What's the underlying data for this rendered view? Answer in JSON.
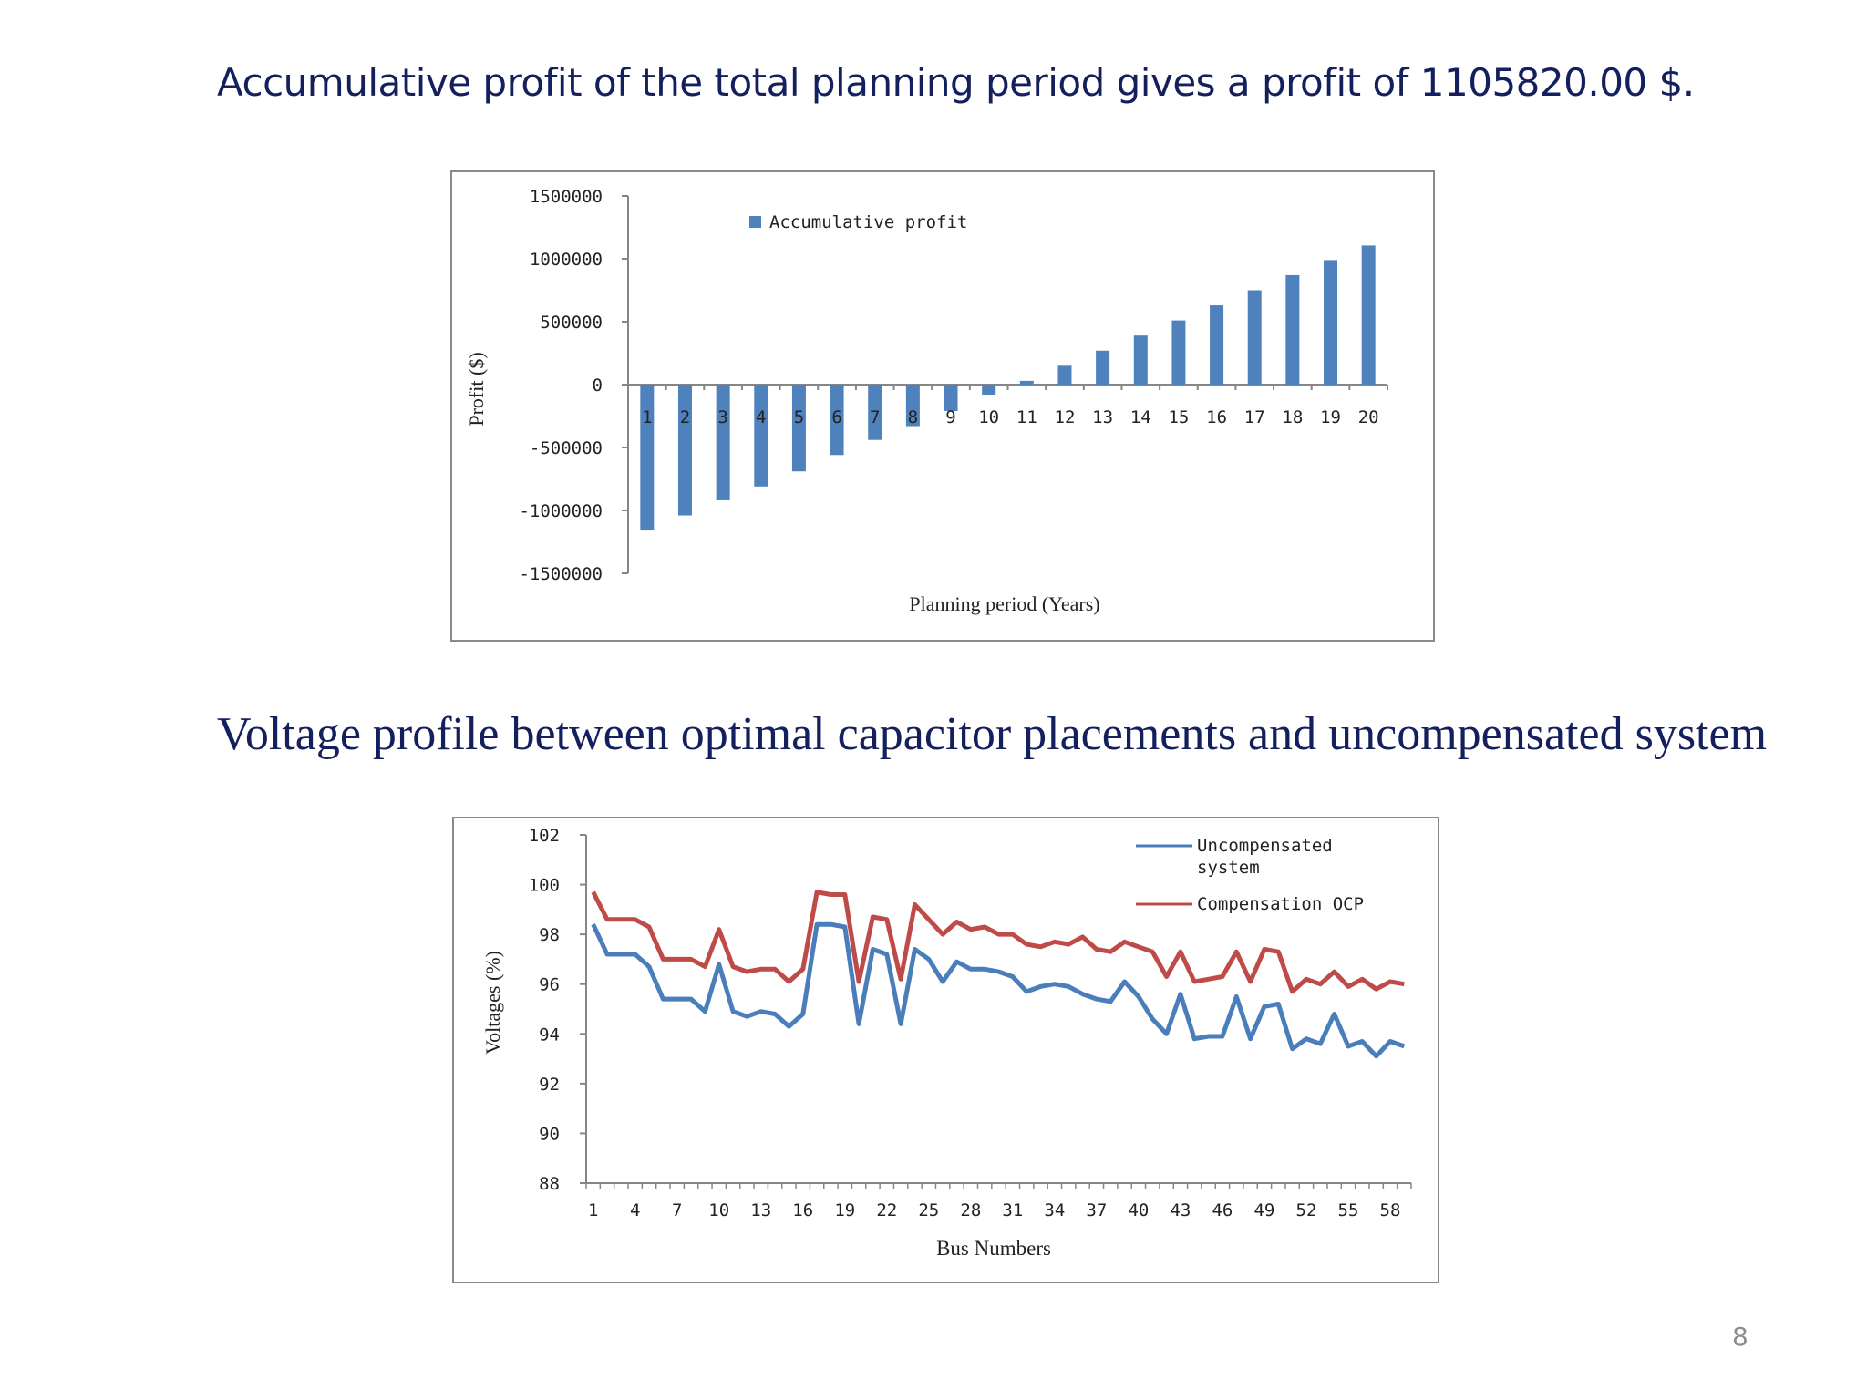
{
  "slide": {
    "heading1": "Accumulative profit of the total planning period gives a profit of 1105820.00 $.",
    "heading2": "Voltage profile between optimal capacitor  placements and uncompensated system",
    "page_number": "8"
  },
  "colors": {
    "bar": "#4f81bd",
    "uncompensated": "#4a7ebb",
    "compensated": "#be4b48",
    "heading": "#14205e"
  },
  "chart_data": [
    {
      "type": "bar",
      "legend": "Accumulative profit",
      "xlabel": "Planning period (Years)",
      "ylabel": "Profit ($)",
      "ylim": [
        -1500000,
        1500000
      ],
      "yticks": [
        "1500000",
        "1000000",
        "500000",
        "0",
        "-500000",
        "-1000000",
        "-1500000"
      ],
      "categories": [
        "1",
        "2",
        "3",
        "4",
        "5",
        "6",
        "7",
        "8",
        "9",
        "10",
        "11",
        "12",
        "13",
        "14",
        "15",
        "16",
        "17",
        "18",
        "19",
        "20"
      ],
      "values": [
        -1160000,
        -1040000,
        -920000,
        -810000,
        -690000,
        -560000,
        -440000,
        -330000,
        -210000,
        -80000,
        30000,
        150000,
        270000,
        390000,
        510000,
        630000,
        750000,
        870000,
        990000,
        1105820
      ]
    },
    {
      "type": "line",
      "xlabel": "Bus Numbers",
      "ylabel": "Voltages (%)",
      "ylim": [
        88,
        102
      ],
      "yticks": [
        "102",
        "100",
        "98",
        "96",
        "94",
        "92",
        "90",
        "88"
      ],
      "xtick_labels": [
        "1",
        "4",
        "7",
        "10",
        "13",
        "16",
        "19",
        "22",
        "25",
        "28",
        "31",
        "34",
        "37",
        "40",
        "43",
        "46",
        "49",
        "52",
        "55",
        "58"
      ],
      "series": [
        {
          "name": "Uncompensated system",
          "name_line1": "Uncompensated",
          "name_line2": "system",
          "values": [
            98.4,
            97.2,
            97.2,
            97.2,
            96.7,
            95.4,
            95.4,
            95.4,
            94.9,
            96.8,
            94.9,
            94.7,
            94.9,
            94.8,
            94.3,
            94.8,
            98.4,
            98.4,
            98.3,
            94.4,
            97.4,
            97.2,
            94.4,
            97.4,
            97.0,
            96.1,
            96.9,
            96.6,
            96.6,
            96.5,
            96.3,
            95.7,
            95.9,
            96.0,
            95.9,
            95.6,
            95.4,
            95.3,
            96.1,
            95.5,
            94.6,
            94.0,
            95.6,
            93.8,
            93.9,
            93.9,
            95.5,
            93.8,
            95.1,
            95.2,
            93.4,
            93.8,
            93.6,
            94.8,
            93.5,
            93.7,
            93.1,
            93.7,
            93.5
          ]
        },
        {
          "name": "Compensation OCP",
          "values": [
            99.7,
            98.6,
            98.6,
            98.6,
            98.3,
            97.0,
            97.0,
            97.0,
            96.7,
            98.2,
            96.7,
            96.5,
            96.6,
            96.6,
            96.1,
            96.6,
            99.7,
            99.6,
            99.6,
            96.1,
            98.7,
            98.6,
            96.2,
            99.2,
            98.6,
            98.0,
            98.5,
            98.2,
            98.3,
            98.0,
            98.0,
            97.6,
            97.5,
            97.7,
            97.6,
            97.9,
            97.4,
            97.3,
            97.7,
            97.5,
            97.3,
            96.3,
            97.3,
            96.1,
            96.2,
            96.3,
            97.3,
            96.1,
            97.4,
            97.3,
            95.7,
            96.2,
            96.0,
            96.5,
            95.9,
            96.2,
            95.8,
            96.1,
            96.0
          ]
        }
      ]
    }
  ]
}
